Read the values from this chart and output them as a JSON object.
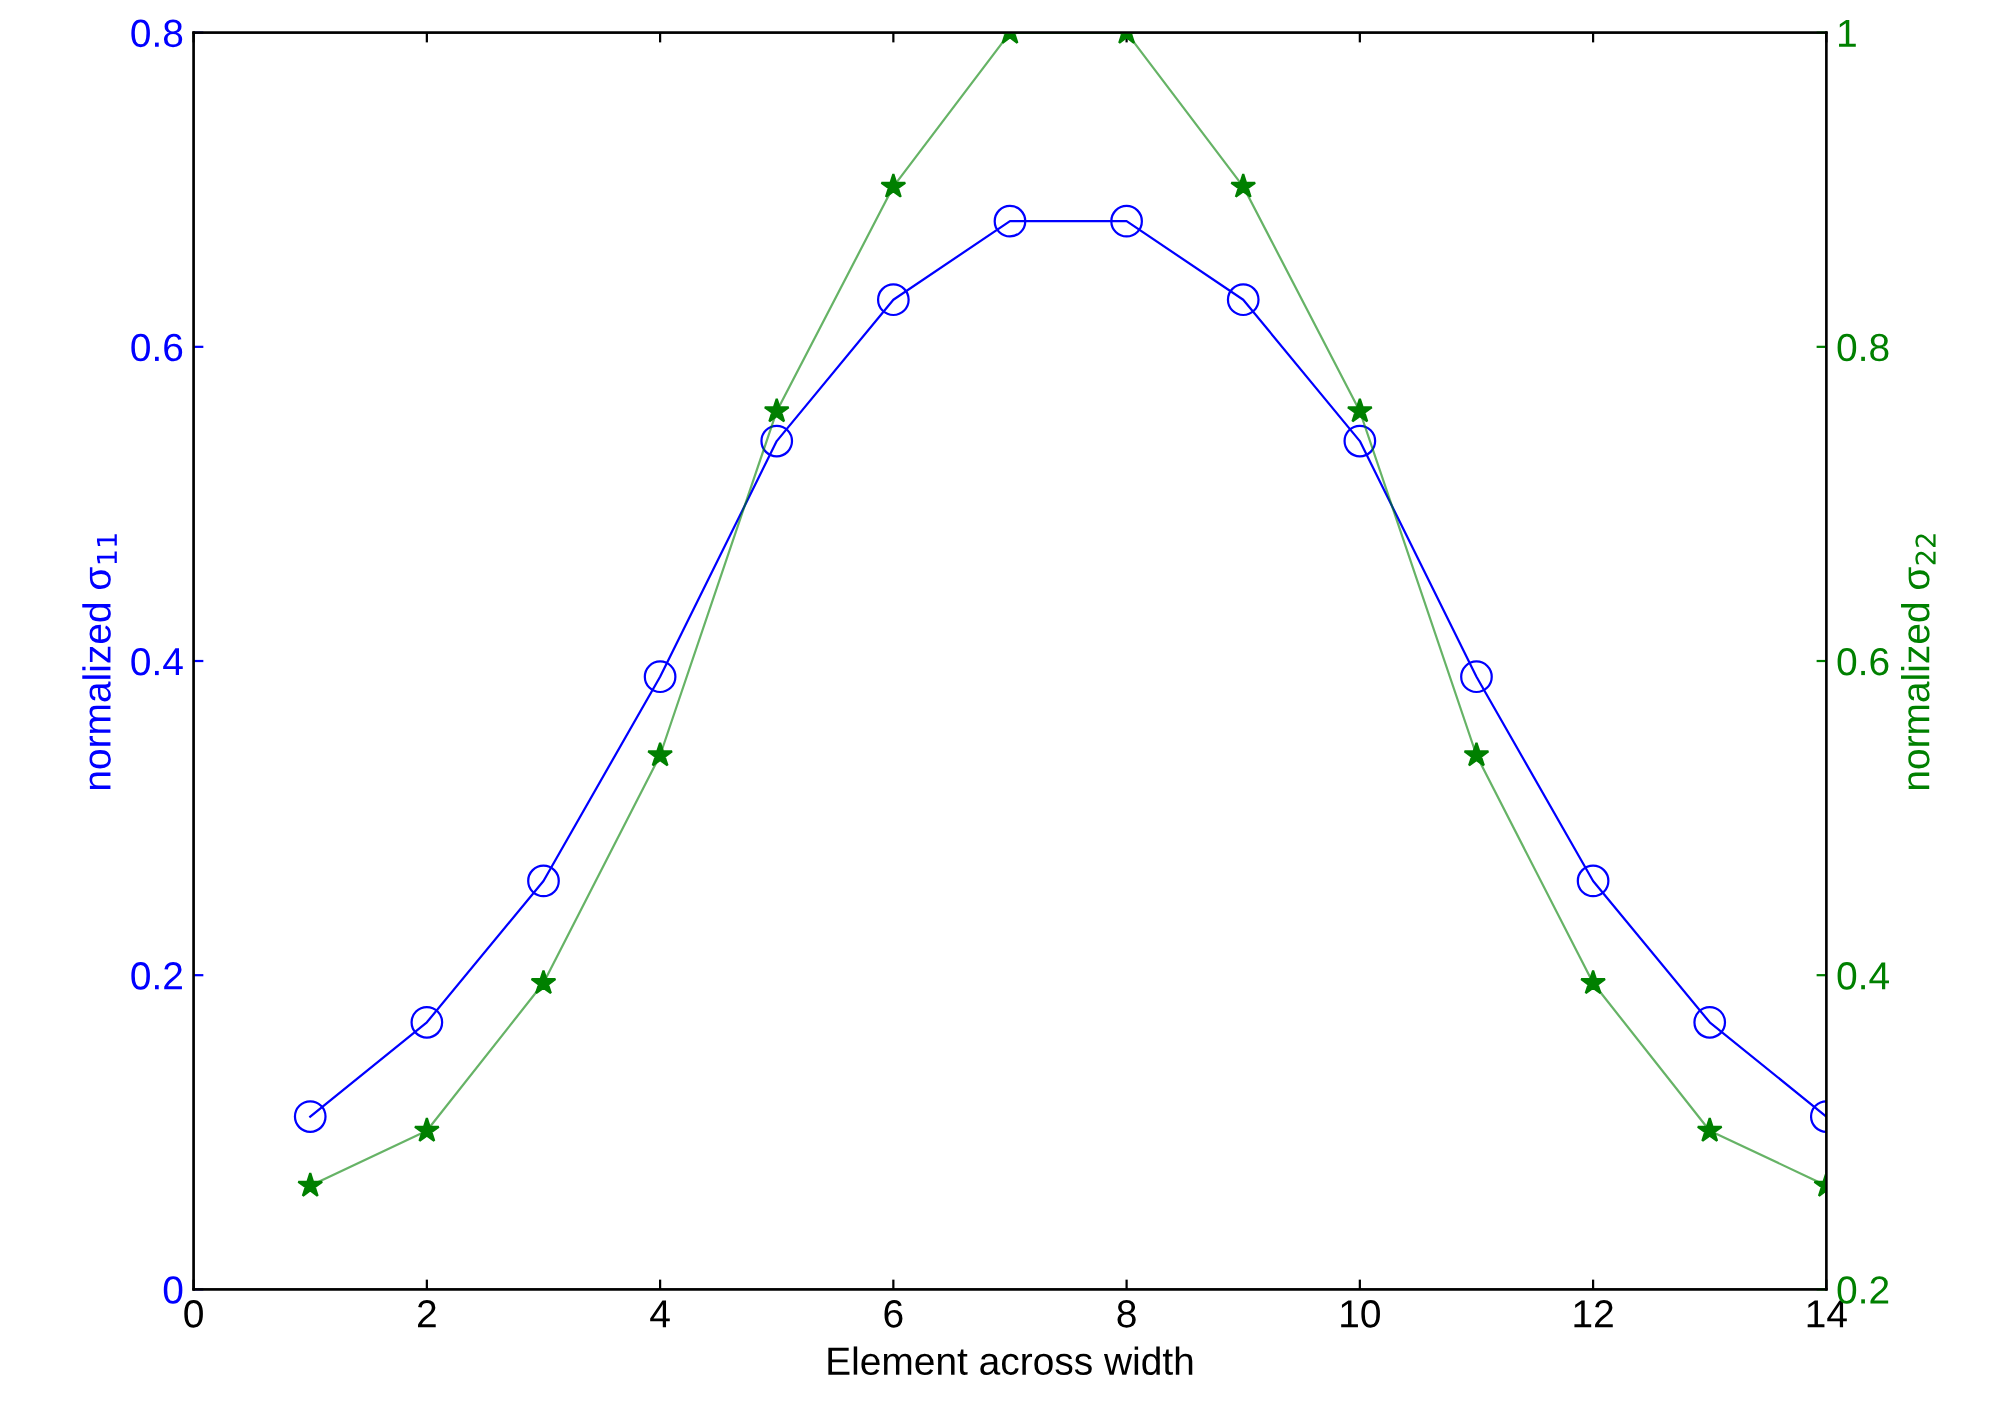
{
  "chart_data": {
    "type": "line",
    "xlabel": "Element across width",
    "ylabel": "normalized σ$_{11}$",
    "y2label": "normalized σ$_{22}$",
    "x": [
      1,
      2,
      3,
      4,
      5,
      6,
      7,
      8,
      9,
      10,
      11,
      12,
      13,
      14
    ],
    "series": [
      {
        "color": "#0000ff",
        "marker": "circle",
        "values": [
          0.11,
          0.17,
          0.26,
          0.39,
          0.54,
          0.63,
          0.68,
          0.68,
          0.63,
          0.54,
          0.39,
          0.26,
          0.17,
          0.11
        ]
      },
      {
        "color": "#008000",
        "marker": "star",
        "axis": "y2",
        "values": [
          0.266,
          0.301,
          0.395,
          0.54,
          0.759,
          0.902,
          1.0,
          1.0,
          0.902,
          0.759,
          0.54,
          0.395,
          0.301,
          0.266
        ]
      }
    ],
    "xlim": [
      0,
      14
    ],
    "xticks": [
      0,
      2,
      4,
      6,
      8,
      10,
      12,
      14
    ],
    "ylim": [
      0,
      0.8
    ],
    "yticks": [
      0,
      0.2,
      0.4,
      0.6,
      0.8
    ],
    "y2lim": [
      0.2,
      1
    ],
    "y2ticks": [
      0.2,
      0.4,
      0.6,
      0.8,
      1
    ],
    "grid": false,
    "legend": false
  }
}
